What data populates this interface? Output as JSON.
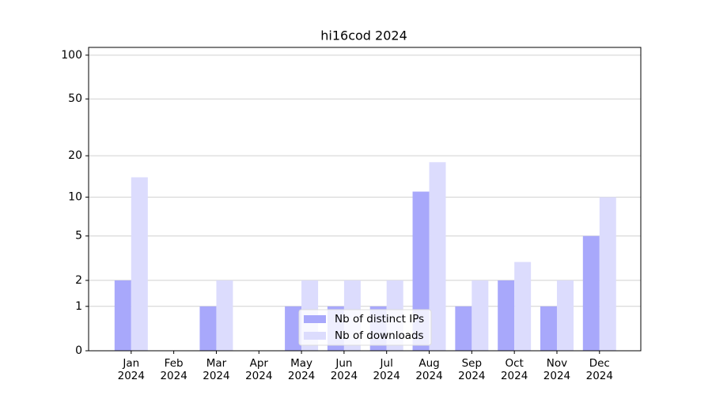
{
  "chart_data": {
    "type": "bar",
    "title": "hi16cod 2024",
    "categories": [
      "Jan\n2024",
      "Feb\n2024",
      "Mar\n2024",
      "Apr\n2024",
      "May\n2024",
      "Jun\n2024",
      "Jul\n2024",
      "Aug\n2024",
      "Sep\n2024",
      "Oct\n2024",
      "Nov\n2024",
      "Dec\n2024"
    ],
    "series": [
      {
        "name": "Nb of distinct IPs",
        "color": "#a8a8fb",
        "values": [
          2,
          0,
          1,
          0,
          1,
          1,
          1,
          11,
          1,
          2,
          1,
          5
        ]
      },
      {
        "name": "Nb of downloads",
        "color": "#dcdcfd",
        "values": [
          14,
          0,
          2,
          0,
          2,
          2,
          2,
          18,
          2,
          3,
          2,
          10
        ]
      }
    ],
    "y_scale": "log1p",
    "ylim": [
      0,
      113
    ],
    "yticks": [
      0,
      1,
      2,
      5,
      10,
      20,
      50,
      100
    ],
    "grid": true,
    "legend": "lower center"
  }
}
